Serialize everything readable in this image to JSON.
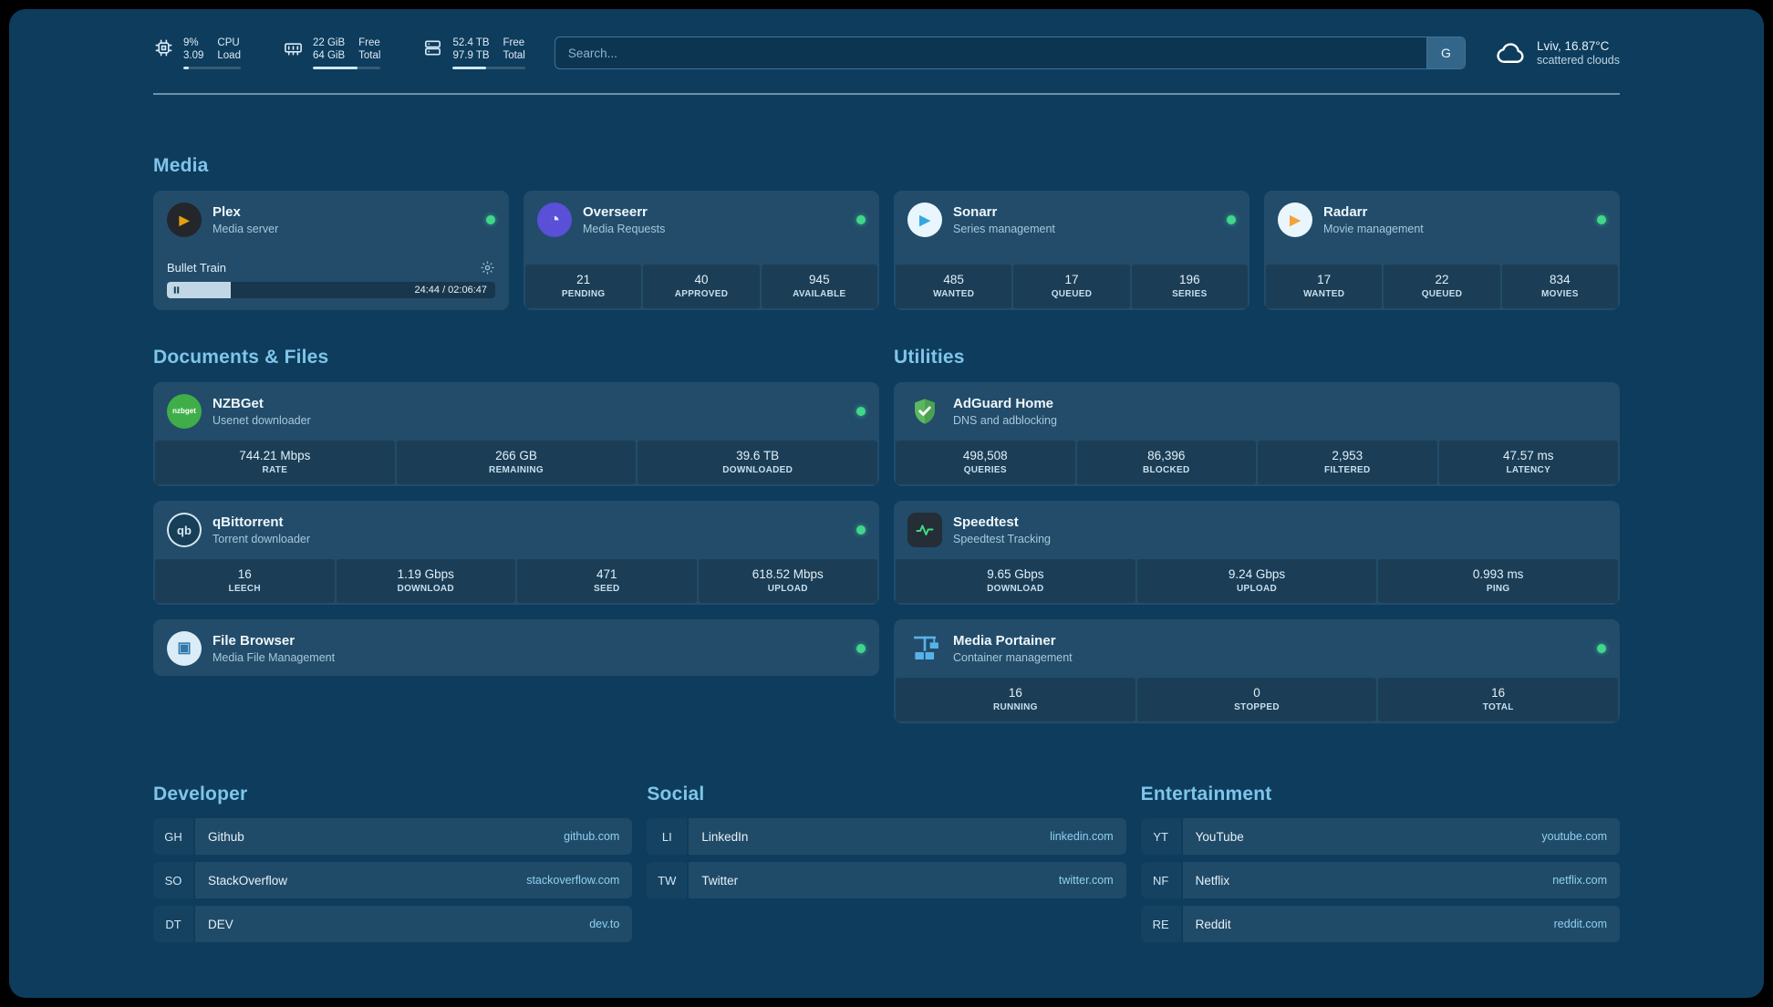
{
  "theme": {
    "bg": "#0e3c5c",
    "card": "rgba(255,255,255,0.085)",
    "tile": "rgba(0,0,0,0.18)",
    "heading": "#7fc5ea",
    "online": "#41d68c",
    "link": "#8fd0f0",
    "muted": "#a7c8dc",
    "text": "#e6f1f8"
  },
  "topbar": {
    "resources": [
      {
        "id": "cpu",
        "icon": "cpu-icon",
        "primary_top": "9%",
        "primary_bottom": "3.09",
        "label_top": "CPU",
        "label_bottom": "Load",
        "progress_pct": 9
      },
      {
        "id": "memory",
        "icon": "memory-icon",
        "primary_top": "22 GiB",
        "primary_bottom": "64 GiB",
        "label_top": "Free",
        "label_bottom": "Total",
        "progress_pct": 66
      },
      {
        "id": "disk",
        "icon": "disk-icon",
        "primary_top": "52.4 TB",
        "primary_bottom": "97.9 TB",
        "label_top": "Free",
        "label_bottom": "Total",
        "progress_pct": 46
      }
    ],
    "search": {
      "placeholder": "Search...",
      "provider_label": "G"
    },
    "weather": {
      "icon": "cloud-icon",
      "location": "Lviv, 16.87°C",
      "condition": "scattered clouds"
    }
  },
  "sections": {
    "media": {
      "title": "Media",
      "cards": [
        {
          "id": "plex",
          "title": "Plex",
          "subtitle": "Media server",
          "online": true,
          "icon": {
            "shape": "circle",
            "bg": "#24262b",
            "glyph": "▶",
            "color": "#e5a00d",
            "size": 14
          },
          "player": {
            "track": "Bullet Train",
            "time": "24:44 / 02:06:47",
            "progress_pct": 19.5
          }
        },
        {
          "id": "overseerr",
          "title": "Overseerr",
          "subtitle": "Media Requests",
          "online": true,
          "icon": {
            "shape": "circle",
            "bg": "#5a4fd7",
            "glyph": "◔",
            "color": "#e8e9ff",
            "size": 20
          },
          "stats": [
            {
              "value": "21",
              "label": "PENDING"
            },
            {
              "value": "40",
              "label": "APPROVED"
            },
            {
              "value": "945",
              "label": "AVAILABLE"
            }
          ]
        },
        {
          "id": "sonarr",
          "title": "Sonarr",
          "subtitle": "Series management",
          "online": true,
          "icon": {
            "shape": "circle",
            "bg": "#eaf6fd",
            "glyph": "▶",
            "color": "#33a8e0",
            "size": 15
          },
          "stats": [
            {
              "value": "485",
              "label": "WANTED"
            },
            {
              "value": "17",
              "label": "QUEUED"
            },
            {
              "value": "196",
              "label": "SERIES"
            }
          ]
        },
        {
          "id": "radarr",
          "title": "Radarr",
          "subtitle": "Movie management",
          "online": true,
          "icon": {
            "shape": "circle",
            "bg": "#eaf6fd",
            "glyph": "▶",
            "color": "#f2a33c",
            "size": 15
          },
          "stats": [
            {
              "value": "17",
              "label": "WANTED"
            },
            {
              "value": "22",
              "label": "QUEUED"
            },
            {
              "value": "834",
              "label": "MOVIES"
            }
          ]
        }
      ]
    },
    "columns": [
      {
        "title": "Documents & Files",
        "cards": [
          {
            "id": "nzbget",
            "title": "NZBGet",
            "subtitle": "Usenet downloader",
            "online": true,
            "icon": {
              "shape": "circle",
              "bg": "#3fae49",
              "glyph": "nzbget",
              "color": "#ffffff",
              "size": 8
            },
            "stats": [
              {
                "value": "744.21 Mbps",
                "label": "RATE"
              },
              {
                "value": "266 GB",
                "label": "REMAINING"
              },
              {
                "value": "39.6 TB",
                "label": "DOWNLOADED"
              }
            ]
          },
          {
            "id": "qbittorrent",
            "title": "qBittorrent",
            "subtitle": "Torrent downloader",
            "online": true,
            "icon": {
              "shape": "circle",
              "bg": "#173f58",
              "border": "#d6e9f5",
              "glyph": "qb",
              "color": "#d6e9f5",
              "size": 13
            },
            "stats": [
              {
                "value": "16",
                "label": "LEECH"
              },
              {
                "value": "1.19 Gbps",
                "label": "DOWNLOAD"
              },
              {
                "value": "471",
                "label": "SEED"
              },
              {
                "value": "618.52 Mbps",
                "label": "UPLOAD"
              }
            ]
          },
          {
            "id": "filebrowser",
            "title": "File Browser",
            "subtitle": "Media File Management",
            "online": true,
            "icon": {
              "shape": "circle",
              "bg": "#d9ecf7",
              "glyph": "▣",
              "color": "#3178a9",
              "size": 16
            }
          }
        ]
      },
      {
        "title": "Utilities",
        "cards": [
          {
            "id": "adguard",
            "title": "AdGuard Home",
            "subtitle": "DNS and adblocking",
            "online": false,
            "icon": {
              "shape": "plain",
              "svg": "shield-check"
            },
            "stats": [
              {
                "value": "498,508",
                "label": "QUERIES"
              },
              {
                "value": "86,396",
                "label": "BLOCKED"
              },
              {
                "value": "2,953",
                "label": "FILTERED"
              },
              {
                "value": "47.57 ms",
                "label": "LATENCY"
              }
            ]
          },
          {
            "id": "speedtest",
            "title": "Speedtest",
            "subtitle": "Speedtest Tracking",
            "online": false,
            "icon": {
              "shape": "rounded",
              "bg": "#252d36",
              "svg": "pulse"
            },
            "stats": [
              {
                "value": "9.65 Gbps",
                "label": "DOWNLOAD"
              },
              {
                "value": "9.24 Gbps",
                "label": "UPLOAD"
              },
              {
                "value": "0.993 ms",
                "label": "PING"
              }
            ]
          },
          {
            "id": "portainer",
            "title": "Media Portainer",
            "subtitle": "Container management",
            "online": true,
            "icon": {
              "shape": "plain",
              "svg": "crane"
            },
            "stats": [
              {
                "value": "16",
                "label": "RUNNING"
              },
              {
                "value": "0",
                "label": "STOPPED"
              },
              {
                "value": "16",
                "label": "TOTAL"
              }
            ]
          }
        ]
      }
    ],
    "bookmarks": [
      {
        "title": "Developer",
        "items": [
          {
            "abbr": "GH",
            "label": "Github",
            "domain": "github.com"
          },
          {
            "abbr": "SO",
            "label": "StackOverflow",
            "domain": "stackoverflow.com"
          },
          {
            "abbr": "DT",
            "label": "DEV",
            "domain": "dev.to"
          }
        ]
      },
      {
        "title": "Social",
        "items": [
          {
            "abbr": "LI",
            "label": "LinkedIn",
            "domain": "linkedin.com"
          },
          {
            "abbr": "TW",
            "label": "Twitter",
            "domain": "twitter.com"
          }
        ]
      },
      {
        "title": "Entertainment",
        "items": [
          {
            "abbr": "YT",
            "label": "YouTube",
            "domain": "youtube.com"
          },
          {
            "abbr": "NF",
            "label": "Netflix",
            "domain": "netflix.com"
          },
          {
            "abbr": "RE",
            "label": "Reddit",
            "domain": "reddit.com"
          }
        ]
      }
    ]
  }
}
